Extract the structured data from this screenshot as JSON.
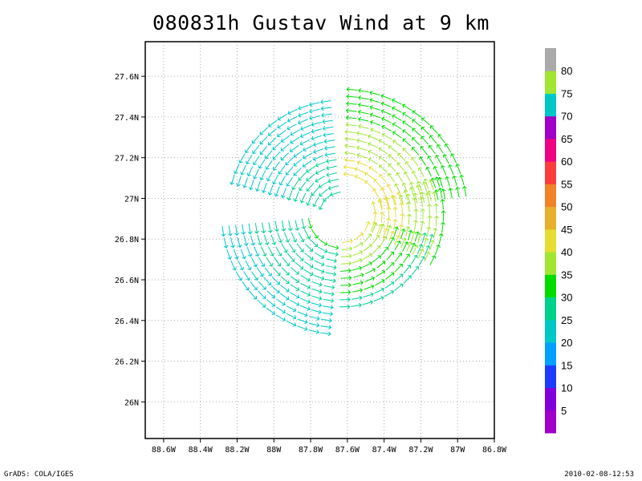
{
  "title": "080831h Gustav Wind at 9 km",
  "footer": {
    "left": "GrADS: COLA/IGES",
    "right": "2010-02-08-12:53"
  },
  "chart_data": {
    "type": "vector-streamline",
    "title": "080831h Gustav Wind at 9 km",
    "x_axis": {
      "range": [
        -88.7,
        -86.8
      ],
      "ticks": [
        -88.6,
        -88.4,
        -88.2,
        -88.0,
        -87.8,
        -87.6,
        -87.4,
        -87.2,
        -87.0,
        -86.8
      ],
      "tick_labels": [
        "88.6W",
        "88.4W",
        "88.2W",
        "88W",
        "87.8W",
        "87.6W",
        "87.4W",
        "87.2W",
        "87W",
        "86.8W"
      ]
    },
    "y_axis": {
      "range": [
        25.82,
        27.77
      ],
      "ticks": [
        26.0,
        26.2,
        26.4,
        26.6,
        26.8,
        27.0,
        27.2,
        27.4,
        27.6
      ],
      "tick_labels": [
        "26N",
        "26.2N",
        "26.4N",
        "26.6N",
        "26.8N",
        "27N",
        "27.2N",
        "27.4N",
        "27.6N"
      ]
    },
    "grid": "dotted",
    "circulation": "counter-clockwise",
    "center": {
      "lon": -87.63,
      "lat": 26.92
    },
    "sectors": [
      {
        "quadrant": "NW",
        "radii_km": [
          12,
          62
        ],
        "deg_from": 95,
        "deg_to": 165,
        "speed_range": [
          20,
          28
        ]
      },
      {
        "quadrant": "NE",
        "radii_km": [
          22,
          68
        ],
        "deg_from": 8,
        "deg_to": 88,
        "speed_range": [
          30,
          42
        ]
      },
      {
        "quadrant": "E",
        "radii_km": [
          18,
          55
        ],
        "deg_from": -30,
        "deg_to": 22,
        "speed_range": [
          34,
          44
        ]
      },
      {
        "quadrant": "SE",
        "radii_km": [
          15,
          50
        ],
        "deg_from": -92,
        "deg_to": -12,
        "speed_range": [
          28,
          40
        ]
      },
      {
        "quadrant": "SW",
        "radii_km": [
          18,
          65
        ],
        "deg_from": -175,
        "deg_to": -95,
        "speed_range": [
          22,
          30
        ]
      }
    ],
    "colorbar": {
      "labels": [
        "5",
        "10",
        "15",
        "20",
        "25",
        "30",
        "35",
        "40",
        "45",
        "50",
        "55",
        "60",
        "65",
        "70",
        "75",
        "80"
      ],
      "colors": [
        "#a000c8",
        "#8200dc",
        "#1e3cff",
        "#00a0ff",
        "#00c8c8",
        "#00d28c",
        "#00dc00",
        "#a0e632",
        "#e6dc32",
        "#e6af2d",
        "#f08228",
        "#fa3c3c",
        "#f00082",
        "#a000c8",
        "#00c8c8",
        "#a0e632",
        "#aaaaaa"
      ]
    }
  }
}
